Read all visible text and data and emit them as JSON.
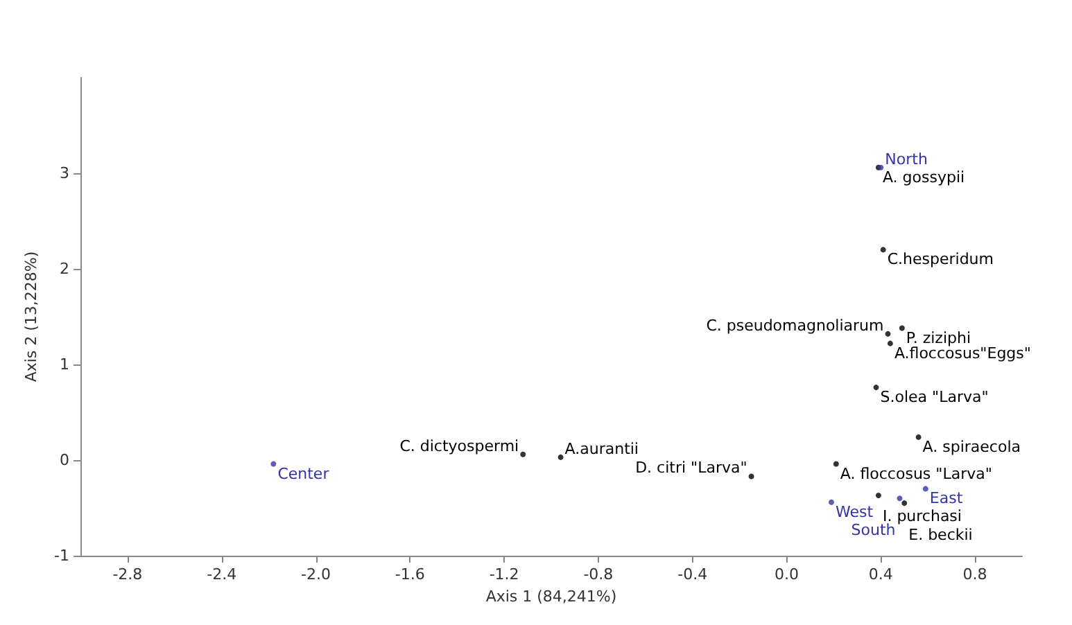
{
  "chart_data": {
    "type": "scatter",
    "xlabel": "Axis 1 (84,241%)",
    "ylabel": "Axis 2 (13,228%)",
    "xlim": [
      -3,
      1
    ],
    "ylim": [
      -1,
      4
    ],
    "xticks": [
      -2.8,
      -2.4,
      {
        "value": -2,
        "label": "-2.0"
      },
      -1.6,
      -1.2,
      -0.8,
      -0.4,
      {
        "value": 0,
        "label": "0.0"
      },
      0.4,
      0.8
    ],
    "yticks": [
      -1,
      0,
      1,
      2,
      3
    ],
    "grid": false,
    "marker": "circle",
    "series": [
      {
        "color": "#000000",
        "x": [
          0.39,
          0.41,
          0.49,
          0.43,
          0.44,
          0.38,
          0.56,
          0.21,
          -0.15,
          -1.12,
          -0.96,
          0.39,
          0.5
        ],
        "values": [
          3.06,
          2.2,
          1.38,
          1.32,
          1.22,
          0.76,
          0.24,
          -0.04,
          -0.17,
          0.06,
          0.03,
          -0.37,
          -0.45
        ]
      },
      {
        "color": "#3333aa",
        "x": [
          0.4,
          -2.18,
          0.19,
          0.48,
          0.59
        ],
        "values": [
          3.06,
          -0.04,
          -0.44,
          -0.4,
          -0.3
        ]
      }
    ],
    "annotations": [
      {
        "text": "A. gossypii",
        "x": 0.39,
        "y": 3.06
      },
      {
        "text": "C.hesperidum",
        "x": 0.41,
        "y": 2.2
      },
      {
        "text": "P. ziziphi",
        "x": 0.49,
        "y": 1.38
      },
      {
        "text": "C. pseudomagnoliarum",
        "x": 0.43,
        "y": 1.32
      },
      {
        "text": "A.floccosus\"Eggs\"",
        "x": 0.44,
        "y": 1.22
      },
      {
        "text": "S.olea \"Larva\"",
        "x": 0.38,
        "y": 0.76
      },
      {
        "text": "A. spiraecola",
        "x": 0.56,
        "y": 0.24
      },
      {
        "text": "A. floccosus \"Larva\"",
        "x": 0.21,
        "y": -0.04
      },
      {
        "text": "D. citri \"Larva\"",
        "x": -0.15,
        "y": -0.17
      },
      {
        "text": "C. dictyospermi",
        "x": -1.12,
        "y": 0.06
      },
      {
        "text": "A.aurantii",
        "x": -0.96,
        "y": 0.03
      },
      {
        "text": "I. purchasi",
        "x": 0.39,
        "y": -0.37
      },
      {
        "text": "E. beckii",
        "x": 0.5,
        "y": -0.45
      },
      {
        "text": "North",
        "x": 0.4,
        "y": 3.06
      },
      {
        "text": "Center",
        "x": -2.18,
        "y": -0.04
      },
      {
        "text": "West",
        "x": 0.19,
        "y": -0.44
      },
      {
        "text": "South",
        "x": 0.48,
        "y": -0.4
      },
      {
        "text": "East",
        "x": 0.59,
        "y": -0.3
      }
    ]
  }
}
